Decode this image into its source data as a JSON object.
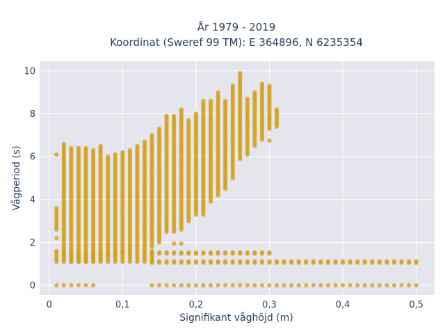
{
  "chart_data": {
    "type": "scatter",
    "title_lines": [
      "År 1979 - 2019",
      "Koordinat (Sweref 99 TM): E 364896, N 6235354"
    ],
    "xlabel": "Signifikant våghöjd (m)",
    "ylabel": "Vågperiod (s)",
    "xlim": [
      -0.013,
      0.525
    ],
    "ylim": [
      -0.45,
      10.45
    ],
    "x_ticks": [
      0,
      0.1,
      0.2,
      0.3,
      0.4,
      0.5
    ],
    "x_tick_labels": [
      "0",
      "0,1",
      "0,2",
      "0,3",
      "0,4",
      "0,5"
    ],
    "y_ticks": [
      0,
      2,
      4,
      6,
      8,
      10
    ],
    "y_tick_labels": [
      "0",
      "2",
      "4",
      "6",
      "8",
      "10"
    ],
    "grid": true,
    "marker_color": "#d4a017",
    "plot_bg": "#e5e5ee",
    "x_step": 0.01,
    "columns": [
      {
        "x": 0.01,
        "ymin": 2.6,
        "ymax": 3.6
      },
      {
        "x": 0.02,
        "ymin": 1.2,
        "ymax": 6.6
      },
      {
        "x": 0.03,
        "ymin": 1.1,
        "ymax": 6.4
      },
      {
        "x": 0.04,
        "ymin": 1.1,
        "ymax": 6.4
      },
      {
        "x": 0.05,
        "ymin": 1.1,
        "ymax": 6.4
      },
      {
        "x": 0.06,
        "ymin": 1.1,
        "ymax": 6.3
      },
      {
        "x": 0.07,
        "ymin": 1.2,
        "ymax": 6.5
      },
      {
        "x": 0.08,
        "ymin": 1.4,
        "ymax": 6.0
      },
      {
        "x": 0.09,
        "ymin": 1.4,
        "ymax": 6.1
      },
      {
        "x": 0.1,
        "ymin": 1.5,
        "ymax": 6.2
      },
      {
        "x": 0.11,
        "ymin": 1.4,
        "ymax": 6.3
      },
      {
        "x": 0.12,
        "ymin": 1.7,
        "ymax": 6.5
      },
      {
        "x": 0.13,
        "ymin": 1.6,
        "ymax": 6.7
      },
      {
        "x": 0.14,
        "ymin": 1.8,
        "ymax": 7.0
      },
      {
        "x": 0.15,
        "ymin": 2.0,
        "ymax": 7.3
      },
      {
        "x": 0.16,
        "ymin": 2.5,
        "ymax": 7.9
      },
      {
        "x": 0.17,
        "ymin": 2.5,
        "ymax": 7.9
      },
      {
        "x": 0.18,
        "ymin": 2.6,
        "ymax": 8.2
      },
      {
        "x": 0.19,
        "ymin": 3.0,
        "ymax": 7.7
      },
      {
        "x": 0.2,
        "ymin": 3.3,
        "ymax": 8.0
      },
      {
        "x": 0.21,
        "ymin": 3.3,
        "ymax": 8.6
      },
      {
        "x": 0.22,
        "ymin": 3.9,
        "ymax": 8.6
      },
      {
        "x": 0.23,
        "ymin": 4.2,
        "ymax": 9.0
      },
      {
        "x": 0.24,
        "ymin": 4.5,
        "ymax": 8.6
      },
      {
        "x": 0.25,
        "ymin": 5.0,
        "ymax": 9.3
      },
      {
        "x": 0.26,
        "ymin": 5.9,
        "ymax": 9.9
      },
      {
        "x": 0.27,
        "ymin": 6.1,
        "ymax": 8.7
      },
      {
        "x": 0.28,
        "ymin": 6.5,
        "ymax": 9.0
      },
      {
        "x": 0.29,
        "ymin": 6.8,
        "ymax": 9.4
      },
      {
        "x": 0.3,
        "ymin": 7.3,
        "ymax": 9.3
      },
      {
        "x": 0.31,
        "ymin": 7.4,
        "ymax": 8.2
      }
    ],
    "low_period_band": {
      "x_from": 0.01,
      "x_to": 0.14,
      "ymin": 1.1,
      "ymax": 1.6
    },
    "flat_bands": [
      {
        "x_from": 0.14,
        "x_to": 0.5,
        "y": 1.06
      },
      {
        "x_from": 0.14,
        "x_to": 0.3,
        "y": 1.48
      }
    ],
    "zero_points": [
      0.01,
      0.02,
      0.03,
      0.04,
      0.05,
      0.06,
      0.14,
      0.15,
      0.16,
      0.17,
      0.18,
      0.19,
      0.2,
      0.21,
      0.22,
      0.23,
      0.24,
      0.25,
      0.26,
      0.27,
      0.28,
      0.29,
      0.3,
      0.31,
      0.32,
      0.33,
      0.34,
      0.35,
      0.36,
      0.37,
      0.38,
      0.39,
      0.4,
      0.41,
      0.42,
      0.43,
      0.44,
      0.45,
      0.46,
      0.47,
      0.48,
      0.49,
      0.5
    ],
    "outliers": [
      {
        "x": 0.01,
        "y": 6.1
      },
      {
        "x": 0.01,
        "y": 2.2
      },
      {
        "x": 0.07,
        "y": 1.15
      },
      {
        "x": 0.18,
        "y": 1.95
      },
      {
        "x": 0.17,
        "y": 1.95
      },
      {
        "x": 0.3,
        "y": 6.75
      },
      {
        "x": 0.31,
        "y": 8.1
      }
    ]
  }
}
